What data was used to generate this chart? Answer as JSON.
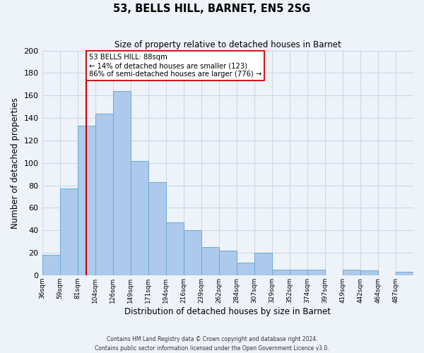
{
  "title": "53, BELLS HILL, BARNET, EN5 2SG",
  "subtitle": "Size of property relative to detached houses in Barnet",
  "xlabel": "Distribution of detached houses by size in Barnet",
  "ylabel": "Number of detached properties",
  "bin_labels": [
    "36sqm",
    "59sqm",
    "81sqm",
    "104sqm",
    "126sqm",
    "149sqm",
    "171sqm",
    "194sqm",
    "216sqm",
    "239sqm",
    "262sqm",
    "284sqm",
    "307sqm",
    "329sqm",
    "352sqm",
    "374sqm",
    "397sqm",
    "419sqm",
    "442sqm",
    "464sqm",
    "487sqm"
  ],
  "bar_heights": [
    18,
    77,
    133,
    144,
    164,
    102,
    83,
    47,
    40,
    25,
    22,
    11,
    20,
    5,
    5,
    5,
    0,
    5,
    4,
    0,
    3
  ],
  "bar_color": "#adc9eb",
  "bar_edge_color": "#6aaad4",
  "vline_index": 2.5,
  "vline_color": "#cc0000",
  "annotation_text": "53 BELLS HILL: 88sqm\n← 14% of detached houses are smaller (123)\n86% of semi-detached houses are larger (776) →",
  "annotation_box_color": "#ffffff",
  "annotation_box_edge": "#cc0000",
  "ylim": [
    0,
    200
  ],
  "yticks": [
    0,
    20,
    40,
    60,
    80,
    100,
    120,
    140,
    160,
    180,
    200
  ],
  "footer_line1": "Contains HM Land Registry data © Crown copyright and database right 2024.",
  "footer_line2": "Contains public sector information licensed under the Open Government Licence v3.0.",
  "background_color": "#eef2f9",
  "grid_color": "#d0d8e8"
}
